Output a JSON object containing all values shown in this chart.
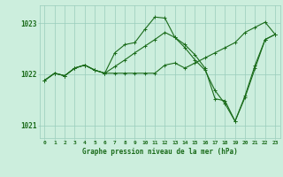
{
  "xlabel": "Graphe pression niveau de la mer (hPa)",
  "hours": [
    0,
    1,
    2,
    3,
    4,
    5,
    6,
    7,
    8,
    9,
    10,
    11,
    12,
    13,
    14,
    15,
    16,
    17,
    18,
    19,
    20,
    21,
    22,
    23
  ],
  "series1": [
    1021.88,
    1022.02,
    1021.97,
    1022.12,
    1022.18,
    1022.08,
    1022.02,
    1022.42,
    1022.58,
    1022.62,
    1022.88,
    1023.12,
    1023.1,
    1022.72,
    1022.58,
    1022.38,
    1022.12,
    1021.52,
    1021.48,
    1021.08,
    1021.58,
    1022.18,
    1022.68,
    1022.78
  ],
  "series2": [
    1021.88,
    1022.02,
    1021.97,
    1022.12,
    1022.18,
    1022.08,
    1022.02,
    1022.02,
    1022.02,
    1022.02,
    1022.02,
    1022.02,
    1022.18,
    1022.22,
    1022.12,
    1022.22,
    1022.32,
    1022.42,
    1022.52,
    1022.62,
    1022.82,
    1022.92,
    1023.02,
    1022.78
  ],
  "series3": [
    1021.88,
    1022.02,
    1021.97,
    1022.12,
    1022.18,
    1022.08,
    1022.02,
    1022.15,
    1022.28,
    1022.42,
    1022.55,
    1022.68,
    1022.82,
    1022.72,
    1022.52,
    1022.28,
    1022.08,
    1021.68,
    1021.42,
    1021.08,
    1021.55,
    1022.12,
    1022.68,
    1022.78
  ],
  "line_color": "#1a6b1a",
  "bg_color": "#cceedd",
  "grid_color": "#99ccbb",
  "axis_color": "#1a6b1a",
  "ylim": [
    1020.75,
    1023.35
  ],
  "yticks": [
    1021,
    1022,
    1023
  ],
  "figsize": [
    3.2,
    2.0
  ],
  "dpi": 100
}
